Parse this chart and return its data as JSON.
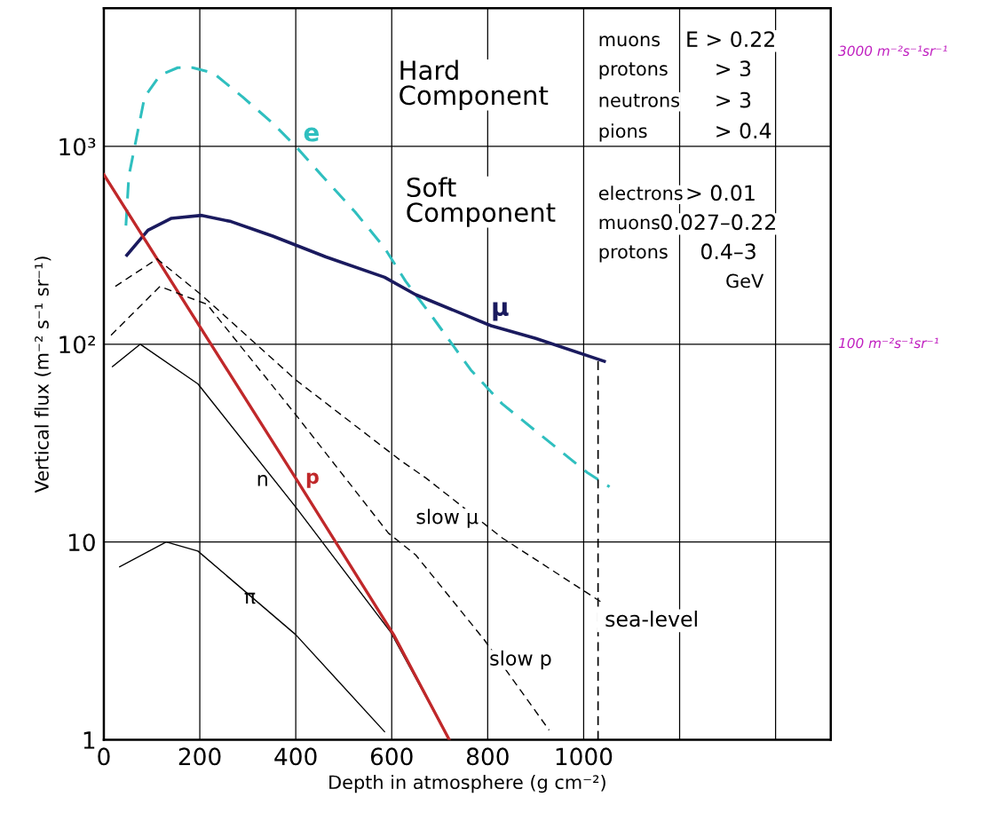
{
  "chart_data": {
    "type": "line",
    "xlabel": "Depth in atmosphere (g cm⁻²)",
    "ylabel": "Vertical flux (m⁻² s⁻¹ sr⁻¹)",
    "log": "y",
    "xlim": [
      0,
      1515
    ],
    "ylim": [
      1,
      5000
    ],
    "xticks": [
      0,
      200,
      400,
      600,
      800,
      1000,
      {
        "value": 1200,
        "label": null
      },
      {
        "value": 1400,
        "label": null
      }
    ],
    "yticks": [
      1,
      10,
      {
        "value": 100,
        "label": "10²"
      },
      {
        "value": 1000,
        "label": "10³"
      }
    ],
    "grid": true,
    "legend": false,
    "series": [
      {
        "name": "e",
        "color": "#2fbfbf",
        "line_style": "dashed",
        "x": [
          46,
          52,
          85,
          117,
          154,
          185,
          228,
          289,
          352,
          400,
          456,
          524,
          585,
          629,
          687,
          765,
          830,
          922,
          1007,
          1054
        ],
        "values": [
          398,
          705,
          1780,
          2290,
          2500,
          2500,
          2350,
          1780,
          1310,
          1000,
          705,
          465,
          307,
          208,
          135,
          74,
          50,
          33,
          22.5,
          19
        ]
      },
      {
        "name": "μ",
        "color": "#1a1a5e",
        "line_style": "solid",
        "x": [
          48,
          92,
          141,
          204,
          265,
          352,
          463,
          585,
          650,
          807,
          900,
          1043
        ],
        "values": [
          282,
          377,
          433,
          448,
          417,
          352,
          276,
          218,
          178,
          124,
          107,
          82
        ]
      },
      {
        "name": "n",
        "color": "#000000",
        "line_style": "solid",
        "x": [
          18,
          76,
          196,
          400,
          598,
          720
        ],
        "values": [
          77,
          100,
          63,
          15,
          3.5,
          1
        ]
      },
      {
        "name": "p",
        "color": "#c0282a",
        "line_style": "solid",
        "x": [
          0,
          400,
          604,
          720
        ],
        "values": [
          720,
          21,
          3.4,
          1
        ]
      },
      {
        "name": "π",
        "color": "#000000",
        "line_style": "solid",
        "x": [
          33,
          130,
          196,
          400,
          585
        ],
        "values": [
          7.5,
          10,
          9.0,
          3.4,
          1.1
        ]
      },
      {
        "name": "slow μ",
        "color": "#000000",
        "line_style": "dashed",
        "x": [
          24,
          111,
          204,
          400,
          617,
          672,
          830,
          1035
        ],
        "values": [
          196,
          270,
          177,
          66,
          26,
          21,
          10.5,
          5.0
        ]
      },
      {
        "name": "slow p",
        "color": "#000000",
        "line_style": "dashed",
        "x": [
          15,
          117,
          215,
          400,
          593,
          650,
          793,
          928
        ],
        "values": [
          111,
          196,
          159,
          44,
          11.1,
          8.6,
          3.2,
          1.12
        ]
      }
    ],
    "ref_lines": [
      {
        "axis": "x",
        "value": 1030,
        "label": "sea-level",
        "line_style": "dashed",
        "color": "#000000"
      }
    ],
    "annotations": [
      "Hard\nComponent",
      "muons",
      "E > 0.22",
      "protons",
      "> 3",
      "neutrons",
      "> 3",
      "pions",
      "> 0.4",
      "Soft\nComponent",
      "electrons",
      "> 0.01",
      "muons",
      "0.027–0.22",
      "protons",
      "0.4–3",
      "GeV",
      "3000 m⁻²s⁻¹sr⁻¹",
      "100 m⁻²s⁻¹sr⁻¹"
    ]
  }
}
